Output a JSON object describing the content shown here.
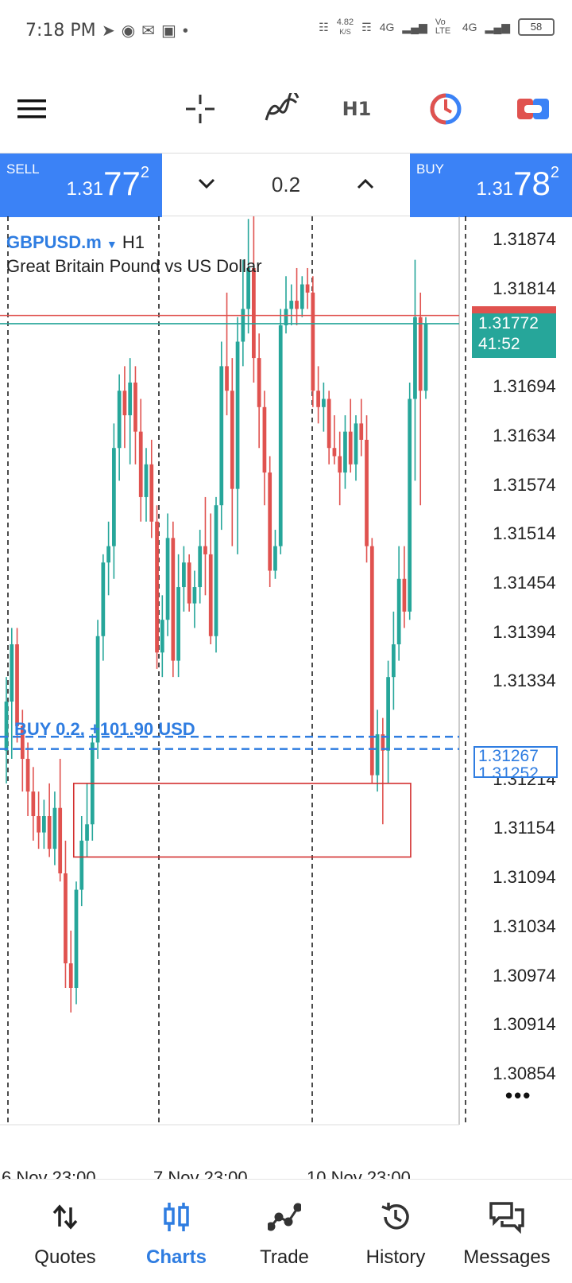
{
  "status_bar": {
    "time": "7:18 PM",
    "net_speed_value": "4.82",
    "net_speed_unit": "K/S",
    "battery": "58",
    "network_labels": [
      "4G",
      "Vo LTE",
      "4G"
    ]
  },
  "toolbar": {
    "menu_icon": "hamburger-icon",
    "crosshair_icon": "crosshair-icon",
    "indicator_icon": "indicators-icon",
    "timeframe": "H1",
    "clock_icon": "chart-clock-icon",
    "trade_icon": "one-click-trade-icon"
  },
  "trade_panel": {
    "sell_label": "SELL",
    "sell_price_small": "1.31",
    "sell_price_big": "77",
    "sell_price_sup": "2",
    "buy_label": "BUY",
    "buy_price_small": "1.31",
    "buy_price_big": "78",
    "buy_price_sup": "2",
    "volume": "0.2"
  },
  "chart": {
    "symbol": "GBPUSD.m",
    "timeframe": "H1",
    "description": "Great Britain Pound vs US Dollar",
    "price_labels": [
      "1.31874",
      "1.31814",
      "1.31694",
      "1.31634",
      "1.31574",
      "1.31514",
      "1.31454",
      "1.31394",
      "1.31334",
      "1.31214",
      "1.31154",
      "1.31094",
      "1.31034",
      "1.30974",
      "1.30914",
      "1.30854"
    ],
    "current_price": "1.31772",
    "countdown": "41:52",
    "order_price": "1.31267",
    "order_price_hidden": "1.31252",
    "order_label": "BUY 0.2, +101.90 USD",
    "x_labels": [
      "6 Nov 23:00",
      "7 Nov 23:00",
      "10 Nov 23:00"
    ],
    "more_icon": "more-dots-icon"
  },
  "chart_data": {
    "type": "candlestick",
    "title": "GBPUSD.m H1",
    "y_axis_range": [
      1.3083,
      1.3194
    ],
    "x_labels": [
      "6 Nov 23:00",
      "7 Nov 23:00",
      "10 Nov 23:00"
    ],
    "colors": {
      "bull": "#26a69a",
      "bear": "#e0524f"
    },
    "candles": [
      {
        "o": 1.3125,
        "h": 1.3134,
        "l": 1.3121,
        "c": 1.3131
      },
      {
        "o": 1.3131,
        "h": 1.314,
        "l": 1.3124,
        "c": 1.3138
      },
      {
        "o": 1.3138,
        "h": 1.314,
        "l": 1.3126,
        "c": 1.3128
      },
      {
        "o": 1.3128,
        "h": 1.313,
        "l": 1.312,
        "c": 1.3124
      },
      {
        "o": 1.3124,
        "h": 1.3126,
        "l": 1.3117,
        "c": 1.312
      },
      {
        "o": 1.312,
        "h": 1.3123,
        "l": 1.3114,
        "c": 1.3117
      },
      {
        "o": 1.3117,
        "h": 1.312,
        "l": 1.3113,
        "c": 1.3115
      },
      {
        "o": 1.3115,
        "h": 1.3119,
        "l": 1.3113,
        "c": 1.3117
      },
      {
        "o": 1.3117,
        "h": 1.3121,
        "l": 1.3112,
        "c": 1.3113
      },
      {
        "o": 1.3113,
        "h": 1.312,
        "l": 1.3111,
        "c": 1.3118
      },
      {
        "o": 1.3118,
        "h": 1.3124,
        "l": 1.3109,
        "c": 1.311
      },
      {
        "o": 1.311,
        "h": 1.3114,
        "l": 1.3096,
        "c": 1.3099
      },
      {
        "o": 1.3099,
        "h": 1.3103,
        "l": 1.3093,
        "c": 1.3096
      },
      {
        "o": 1.3096,
        "h": 1.3109,
        "l": 1.3094,
        "c": 1.3108
      },
      {
        "o": 1.3108,
        "h": 1.3117,
        "l": 1.3106,
        "c": 1.3114
      },
      {
        "o": 1.3114,
        "h": 1.3121,
        "l": 1.3112,
        "c": 1.3116
      },
      {
        "o": 1.3116,
        "h": 1.3127,
        "l": 1.3114,
        "c": 1.3126
      },
      {
        "o": 1.3126,
        "h": 1.3141,
        "l": 1.3124,
        "c": 1.3139
      },
      {
        "o": 1.3139,
        "h": 1.3149,
        "l": 1.3136,
        "c": 1.3148
      },
      {
        "o": 1.3148,
        "h": 1.3153,
        "l": 1.3144,
        "c": 1.315
      },
      {
        "o": 1.315,
        "h": 1.3165,
        "l": 1.3146,
        "c": 1.3162
      },
      {
        "o": 1.3162,
        "h": 1.3171,
        "l": 1.3158,
        "c": 1.3169
      },
      {
        "o": 1.3169,
        "h": 1.3172,
        "l": 1.3162,
        "c": 1.3166
      },
      {
        "o": 1.3166,
        "h": 1.3173,
        "l": 1.316,
        "c": 1.317
      },
      {
        "o": 1.317,
        "h": 1.3172,
        "l": 1.316,
        "c": 1.3164
      },
      {
        "o": 1.3164,
        "h": 1.3168,
        "l": 1.3153,
        "c": 1.3156
      },
      {
        "o": 1.3156,
        "h": 1.3162,
        "l": 1.3153,
        "c": 1.316
      },
      {
        "o": 1.316,
        "h": 1.3163,
        "l": 1.3151,
        "c": 1.3153
      },
      {
        "o": 1.3153,
        "h": 1.3155,
        "l": 1.3135,
        "c": 1.3137
      },
      {
        "o": 1.3137,
        "h": 1.3144,
        "l": 1.3134,
        "c": 1.3141
      },
      {
        "o": 1.3141,
        "h": 1.3154,
        "l": 1.3139,
        "c": 1.3151
      },
      {
        "o": 1.3151,
        "h": 1.3153,
        "l": 1.3134,
        "c": 1.3136
      },
      {
        "o": 1.3136,
        "h": 1.3149,
        "l": 1.3134,
        "c": 1.3145
      },
      {
        "o": 1.3145,
        "h": 1.315,
        "l": 1.3142,
        "c": 1.3148
      },
      {
        "o": 1.3148,
        "h": 1.3149,
        "l": 1.3142,
        "c": 1.3143
      },
      {
        "o": 1.3143,
        "h": 1.3147,
        "l": 1.314,
        "c": 1.3145
      },
      {
        "o": 1.3145,
        "h": 1.3152,
        "l": 1.3143,
        "c": 1.315
      },
      {
        "o": 1.315,
        "h": 1.3156,
        "l": 1.3144,
        "c": 1.3149
      },
      {
        "o": 1.3149,
        "h": 1.3154,
        "l": 1.3138,
        "c": 1.3139
      },
      {
        "o": 1.3139,
        "h": 1.3156,
        "l": 1.3137,
        "c": 1.3155
      },
      {
        "o": 1.3155,
        "h": 1.3175,
        "l": 1.3152,
        "c": 1.3172
      },
      {
        "o": 1.3172,
        "h": 1.3181,
        "l": 1.3166,
        "c": 1.3169
      },
      {
        "o": 1.3169,
        "h": 1.3173,
        "l": 1.315,
        "c": 1.3157
      },
      {
        "o": 1.3157,
        "h": 1.3178,
        "l": 1.3149,
        "c": 1.3175
      },
      {
        "o": 1.3175,
        "h": 1.3185,
        "l": 1.3172,
        "c": 1.3179
      },
      {
        "o": 1.3179,
        "h": 1.319,
        "l": 1.3176,
        "c": 1.3184
      },
      {
        "o": 1.3184,
        "h": 1.3192,
        "l": 1.317,
        "c": 1.3173
      },
      {
        "o": 1.3173,
        "h": 1.3176,
        "l": 1.3162,
        "c": 1.3167
      },
      {
        "o": 1.3167,
        "h": 1.3169,
        "l": 1.3155,
        "c": 1.3159
      },
      {
        "o": 1.3159,
        "h": 1.3161,
        "l": 1.3145,
        "c": 1.3147
      },
      {
        "o": 1.3147,
        "h": 1.3152,
        "l": 1.3146,
        "c": 1.315
      },
      {
        "o": 1.315,
        "h": 1.3179,
        "l": 1.3149,
        "c": 1.3177
      },
      {
        "o": 1.3177,
        "h": 1.3183,
        "l": 1.3176,
        "c": 1.3179
      },
      {
        "o": 1.3179,
        "h": 1.3182,
        "l": 1.3177,
        "c": 1.318
      },
      {
        "o": 1.318,
        "h": 1.3184,
        "l": 1.3177,
        "c": 1.3179
      },
      {
        "o": 1.3179,
        "h": 1.3183,
        "l": 1.3178,
        "c": 1.3182
      },
      {
        "o": 1.3182,
        "h": 1.3184,
        "l": 1.3179,
        "c": 1.3181
      },
      {
        "o": 1.3181,
        "h": 1.3183,
        "l": 1.3167,
        "c": 1.3169
      },
      {
        "o": 1.3169,
        "h": 1.3172,
        "l": 1.3165,
        "c": 1.3167
      },
      {
        "o": 1.3167,
        "h": 1.317,
        "l": 1.3164,
        "c": 1.3168
      },
      {
        "o": 1.3168,
        "h": 1.3169,
        "l": 1.316,
        "c": 1.3162
      },
      {
        "o": 1.3162,
        "h": 1.3166,
        "l": 1.316,
        "c": 1.3161
      },
      {
        "o": 1.3161,
        "h": 1.3164,
        "l": 1.3155,
        "c": 1.3159
      },
      {
        "o": 1.3159,
        "h": 1.3166,
        "l": 1.3157,
        "c": 1.3164
      },
      {
        "o": 1.3164,
        "h": 1.3168,
        "l": 1.3159,
        "c": 1.316
      },
      {
        "o": 1.316,
        "h": 1.3166,
        "l": 1.3158,
        "c": 1.3165
      },
      {
        "o": 1.3165,
        "h": 1.3168,
        "l": 1.3161,
        "c": 1.3163
      },
      {
        "o": 1.3163,
        "h": 1.3166,
        "l": 1.3148,
        "c": 1.315
      },
      {
        "o": 1.315,
        "h": 1.3151,
        "l": 1.3121,
        "c": 1.3122
      },
      {
        "o": 1.3122,
        "h": 1.313,
        "l": 1.312,
        "c": 1.3127
      },
      {
        "o": 1.3127,
        "h": 1.3129,
        "l": 1.3116,
        "c": 1.3125
      },
      {
        "o": 1.3125,
        "h": 1.3136,
        "l": 1.3121,
        "c": 1.3134
      },
      {
        "o": 1.3134,
        "h": 1.3142,
        "l": 1.313,
        "c": 1.3138
      },
      {
        "o": 1.3138,
        "h": 1.315,
        "l": 1.3136,
        "c": 1.3146
      },
      {
        "o": 1.3146,
        "h": 1.315,
        "l": 1.314,
        "c": 1.3142
      },
      {
        "o": 1.3142,
        "h": 1.317,
        "l": 1.3141,
        "c": 1.3168
      },
      {
        "o": 1.3168,
        "h": 1.3185,
        "l": 1.3158,
        "c": 1.3178
      },
      {
        "o": 1.3178,
        "h": 1.3181,
        "l": 1.3155,
        "c": 1.3169
      },
      {
        "o": 1.3169,
        "h": 1.3178,
        "l": 1.3168,
        "c": 1.31772
      }
    ],
    "levels": [
      {
        "name": "Ask",
        "price": 1.31782,
        "color": "#e0524f"
      },
      {
        "name": "Bid",
        "price": 1.31772,
        "color": "#26a69a"
      },
      {
        "name": "BUY 0.2, +101.90 USD",
        "price": 1.31267,
        "color": "#2f7de1"
      },
      {
        "name": "BUY 0.2",
        "price": 1.31252,
        "color": "#2f7de1"
      }
    ],
    "annotation_box": {
      "from_candle": 14,
      "to_candle": 74,
      "price_high": 1.3121,
      "price_low": 1.3112
    }
  },
  "bottom_nav": [
    {
      "label": "Quotes",
      "icon": "quotes-arrows-icon",
      "active": false
    },
    {
      "label": "Charts",
      "icon": "charts-candles-icon",
      "active": true
    },
    {
      "label": "Trade",
      "icon": "trade-line-icon",
      "active": false
    },
    {
      "label": "History",
      "icon": "history-clock-icon",
      "active": false
    },
    {
      "label": "Messages",
      "icon": "messages-bubbles-icon",
      "active": false
    }
  ]
}
